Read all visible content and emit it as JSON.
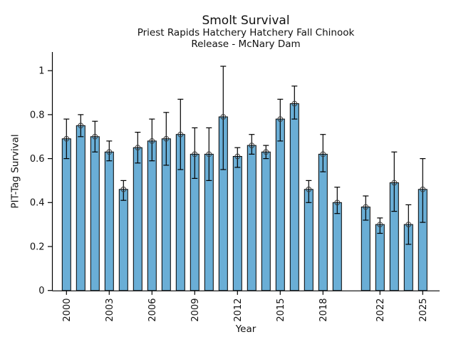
{
  "chart_data": {
    "type": "bar",
    "title": "Smolt Survival",
    "subtitle_line1": "Priest Rapids Hatchery Hatchery Fall Chinook",
    "subtitle_line2": "Release - McNary Dam",
    "xlabel": "Year",
    "ylabel": "PIT-Tag Survival",
    "categories": [
      2000,
      2001,
      2002,
      2003,
      2004,
      2005,
      2006,
      2007,
      2008,
      2009,
      2010,
      2011,
      2012,
      2013,
      2014,
      2015,
      2016,
      2017,
      2018,
      2019,
      2021,
      2022,
      2023,
      2024,
      2025
    ],
    "values": [
      0.69,
      0.75,
      0.7,
      0.63,
      0.46,
      0.65,
      0.68,
      0.69,
      0.71,
      0.62,
      0.62,
      0.79,
      0.61,
      0.66,
      0.63,
      0.78,
      0.85,
      0.46,
      0.62,
      0.4,
      0.38,
      0.3,
      0.49,
      0.3,
      0.46
    ],
    "error_low": [
      0.6,
      0.7,
      0.63,
      0.59,
      0.41,
      0.58,
      0.59,
      0.57,
      0.55,
      0.51,
      0.5,
      0.55,
      0.56,
      0.62,
      0.6,
      0.68,
      0.78,
      0.4,
      0.54,
      0.35,
      0.32,
      0.26,
      0.36,
      0.21,
      0.31
    ],
    "error_high": [
      0.78,
      0.8,
      0.77,
      0.68,
      0.5,
      0.72,
      0.78,
      0.81,
      0.87,
      0.74,
      0.74,
      1.02,
      0.65,
      0.71,
      0.66,
      0.87,
      0.93,
      0.5,
      0.71,
      0.47,
      0.43,
      0.33,
      0.63,
      0.39,
      0.6
    ],
    "missing_years": [
      2020
    ],
    "yticks": [
      0,
      0.2,
      0.4,
      0.6,
      0.8,
      1
    ],
    "ylim": [
      0,
      1.08
    ],
    "xtick_years": [
      2000,
      2003,
      2006,
      2009,
      2012,
      2015,
      2018,
      2022,
      2025
    ],
    "xtick_labels": [
      "2000",
      "2003",
      "2006",
      "2009",
      "2012",
      "2015",
      "2018",
      "2022",
      "2025"
    ],
    "grid": false,
    "legend": false,
    "marker": "open-circle",
    "bar_color": "#6aaed6",
    "bar_edge_color": "#000000",
    "error_color": "#000000",
    "marker_color": "#3a3a3a",
    "background": "#ffffff"
  }
}
